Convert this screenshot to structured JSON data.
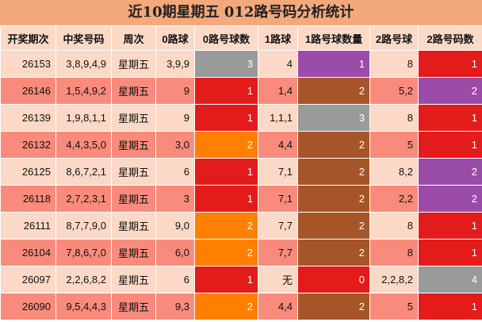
{
  "title": "近10期星期五 012路号码分析统计",
  "table": {
    "header": [
      "开奖期次",
      "中奖号码",
      "周次",
      "0路球",
      "0路号球数",
      "1路球",
      "1路号球数量",
      "2路号球",
      "2路号码数"
    ],
    "rows": [
      [
        26153,
        "3,8,9,4,9",
        "星期五",
        "3,9,9",
        3,
        "4",
        1,
        "8",
        1
      ],
      [
        26146,
        "1,5,4,9,2",
        "星期五",
        "9",
        1,
        "1,4",
        2,
        "5,2",
        2
      ],
      [
        26139,
        "1,9,8,1,1",
        "星期五",
        "9",
        1,
        "1,1,1",
        3,
        "8",
        1
      ],
      [
        26132,
        "4,4,3,5,0",
        "星期五",
        "3,0",
        2,
        "4,4",
        2,
        "5",
        1
      ],
      [
        26125,
        "8,6,7,2,1",
        "星期五",
        "6",
        1,
        "7,1",
        2,
        "8,2",
        2
      ],
      [
        26118,
        "2,7,2,3,1",
        "星期五",
        "3",
        1,
        "7,1",
        2,
        "2,2",
        2
      ],
      [
        26111,
        "8,7,7,9,0",
        "星期五",
        "9,0",
        2,
        "7,7",
        2,
        "8",
        1
      ],
      [
        26104,
        "7,8,6,7,0",
        "星期五",
        "6,0",
        2,
        "7,7",
        2,
        "8",
        1
      ],
      [
        26097,
        "2,2,6,8,2",
        "星期五",
        "6",
        1,
        "无",
        0,
        "2,2,8,2",
        4
      ],
      [
        26090,
        "9,5,4,4,3",
        "星期五",
        "9,3",
        2,
        "4,4",
        2,
        "5",
        1
      ]
    ]
  }
}
